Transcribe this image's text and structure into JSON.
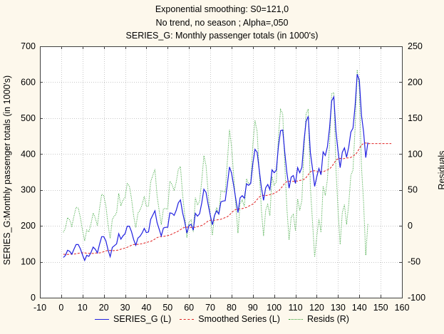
{
  "chart_data": {
    "type": "line",
    "title_lines": [
      "Exponential smoothing:  S0=121,0",
      "No trend, no season   ; Alpha=,050",
      "SERIES_G: Monthly passenger totals (in 1000's)"
    ],
    "xlabel": "",
    "ylabel_left": "SERIES_G:Monthly passenger totals (in 1000's)",
    "ylabel_right": "Residuals",
    "xlim": [
      -10,
      160
    ],
    "ylim_left": [
      0,
      700
    ],
    "ylim_right": [
      -100,
      250
    ],
    "x_ticks": [
      "-10",
      "0",
      "10",
      "20",
      "30",
      "40",
      "50",
      "60",
      "70",
      "80",
      "90",
      "100",
      "110",
      "120",
      "130",
      "140",
      "150",
      "160"
    ],
    "y_left_ticks": [
      "0",
      "100",
      "200",
      "300",
      "400",
      "500",
      "600",
      "700"
    ],
    "y_right_ticks": [
      "-100",
      "-50",
      "0",
      "50",
      "100",
      "150",
      "200",
      "250"
    ],
    "grid": true,
    "alpha": 0.05,
    "s0": 121.0,
    "forecast_end_x": 155,
    "series": [
      {
        "name": "SERIES_G (L)",
        "axis": "left",
        "color": "#2020e0",
        "style": "solid",
        "x_start": 1,
        "values": [
          112,
          118,
          132,
          129,
          121,
          135,
          148,
          148,
          136,
          119,
          104,
          118,
          115,
          126,
          141,
          135,
          125,
          149,
          170,
          170,
          158,
          133,
          114,
          140,
          145,
          150,
          178,
          163,
          172,
          178,
          199,
          199,
          184,
          162,
          146,
          166,
          171,
          180,
          193,
          181,
          183,
          218,
          230,
          242,
          209,
          191,
          172,
          194,
          196,
          196,
          236,
          235,
          229,
          243,
          264,
          272,
          237,
          211,
          180,
          201,
          204,
          188,
          235,
          227,
          234,
          264,
          302,
          293,
          259,
          229,
          203,
          229,
          242,
          233,
          267,
          269,
          270,
          315,
          364,
          347,
          312,
          274,
          237,
          278,
          284,
          277,
          317,
          313,
          318,
          374,
          413,
          405,
          355,
          306,
          271,
          306,
          315,
          301,
          356,
          348,
          355,
          422,
          465,
          467,
          404,
          347,
          305,
          336,
          340,
          318,
          362,
          348,
          363,
          435,
          491,
          505,
          404,
          359,
          310,
          337,
          360,
          342,
          406,
          396,
          420,
          472,
          548,
          559,
          463,
          407,
          362,
          405,
          417,
          391,
          419,
          461,
          472,
          535,
          622,
          606,
          508,
          461,
          390,
          432
        ]
      },
      {
        "name": "Smoothed Series (L)",
        "axis": "left",
        "color": "#e02020",
        "style": "dashed"
      },
      {
        "name": "Resids (R)",
        "axis": "right",
        "color": "#30a030",
        "style": "dotted"
      }
    ],
    "legend_position": "bottom"
  }
}
